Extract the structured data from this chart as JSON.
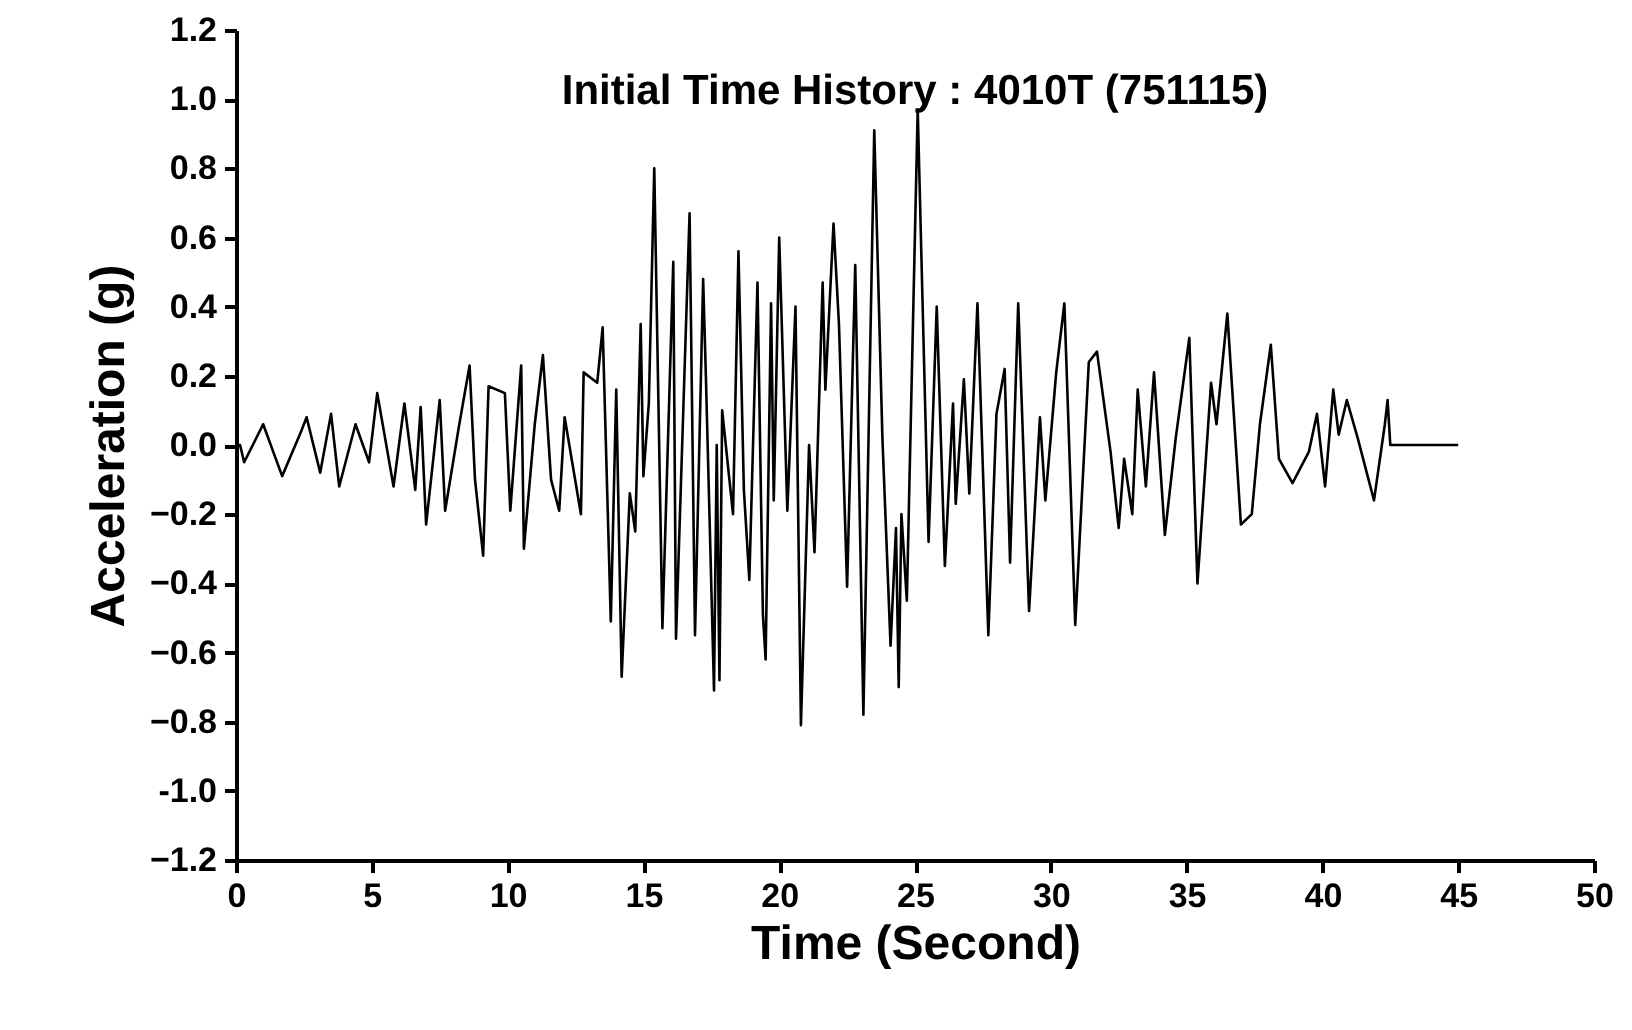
{
  "chart_data": {
    "type": "line",
    "title": "Initial Time History : 4010T (751115)",
    "xlabel": "Time (Second)",
    "ylabel": "Acceleration (g)",
    "xlim": [
      0,
      50
    ],
    "xticks": [
      0,
      5,
      10,
      15,
      20,
      25,
      30,
      35,
      40,
      45,
      50
    ],
    "ylim": [
      -1.2,
      1.2
    ],
    "yticks": [
      -1.2,
      {
        "value": -1,
        "label": "-1.0"
      },
      -0.8,
      -0.6,
      -0.4,
      -0.2,
      {
        "value": 0,
        "label": "0.0"
      },
      0.2,
      0.4,
      0.6,
      0.8,
      {
        "value": 1,
        "label": "1.0"
      },
      1.2
    ],
    "grid": false,
    "marker": "none",
    "line_style": "solid",
    "series": [
      {
        "color": "#000000",
        "x": [
          0,
          0.15,
          0.3,
          1.0,
          1.7,
          2.4,
          2.6,
          3.1,
          3.5,
          3.8,
          4.4,
          4.9,
          5.2,
          5.8,
          6.2,
          6.6,
          6.8,
          7.0,
          7.5,
          7.7,
          8.2,
          8.6,
          8.8,
          9.1,
          9.3,
          9.9,
          10.1,
          10.5,
          10.6,
          11.0,
          11.3,
          11.6,
          11.9,
          12.1,
          12.7,
          12.8,
          13.3,
          13.5,
          13.8,
          14.0,
          14.2,
          14.5,
          14.7,
          14.9,
          15.0,
          15.2,
          15.4,
          15.7,
          16.1,
          16.2,
          16.7,
          16.9,
          17.2,
          17.3,
          17.6,
          17.7,
          17.8,
          17.9,
          18.3,
          18.5,
          18.7,
          18.9,
          19.2,
          19.4,
          19.5,
          19.7,
          19.8,
          20.0,
          20.3,
          20.6,
          20.8,
          21.1,
          21.3,
          21.6,
          21.7,
          22.0,
          22.2,
          22.5,
          22.8,
          23.1,
          23.5,
          23.8,
          24.1,
          24.3,
          24.4,
          24.5,
          24.7,
          24.8,
          25.1,
          25.5,
          25.8,
          26.1,
          26.4,
          26.5,
          26.8,
          27.0,
          27.3,
          27.7,
          28.0,
          28.3,
          28.5,
          28.8,
          29.2,
          29.6,
          29.8,
          30.2,
          30.5,
          30.9,
          31.4,
          31.7,
          32.2,
          32.5,
          32.7,
          33.0,
          33.2,
          33.5,
          33.8,
          34.2,
          34.6,
          35.1,
          35.4,
          35.9,
          36.1,
          36.5,
          37.0,
          37.4,
          37.7,
          38.1,
          38.4,
          38.9,
          39.5,
          39.8,
          40.1,
          40.4,
          40.6,
          40.9,
          41.3,
          41.9,
          42.3,
          42.4,
          42.5,
          45.0
        ],
        "values": [
          0,
          0,
          -0.05,
          0.06,
          -0.09,
          0.04,
          0.08,
          -0.08,
          0.09,
          -0.12,
          0.06,
          -0.05,
          0.15,
          -0.12,
          0.12,
          -0.13,
          0.11,
          -0.23,
          0.13,
          -0.19,
          0.05,
          0.23,
          -0.1,
          -0.32,
          0.17,
          0.15,
          -0.19,
          0.23,
          -0.3,
          0.06,
          0.26,
          -0.1,
          -0.19,
          0.08,
          -0.2,
          0.21,
          0.18,
          0.34,
          -0.51,
          0.16,
          -0.67,
          -0.14,
          -0.25,
          0.35,
          -0.09,
          0.12,
          0.8,
          -0.53,
          0.53,
          -0.56,
          0.67,
          -0.55,
          0.48,
          0.2,
          -0.71,
          0,
          -0.68,
          0.1,
          -0.2,
          0.56,
          -0.13,
          -0.39,
          0.47,
          -0.49,
          -0.62,
          0.41,
          -0.16,
          0.6,
          -0.19,
          0.4,
          -0.81,
          0,
          -0.31,
          0.47,
          0.16,
          0.64,
          0.35,
          -0.41,
          0.52,
          -0.78,
          0.91,
          0.02,
          -0.58,
          -0.24,
          -0.7,
          -0.2,
          -0.45,
          -0.09,
          0.97,
          -0.28,
          0.4,
          -0.35,
          0.12,
          -0.17,
          0.19,
          -0.14,
          0.41,
          -0.55,
          0.09,
          0.22,
          -0.34,
          0.41,
          -0.48,
          0.08,
          -0.16,
          0.21,
          0.41,
          -0.52,
          0.24,
          0.27,
          -0.02,
          -0.24,
          -0.04,
          -0.2,
          0.16,
          -0.12,
          0.21,
          -0.26,
          0.02,
          0.31,
          -0.4,
          0.18,
          0.06,
          0.38,
          -0.23,
          -0.2,
          0.06,
          0.29,
          -0.04,
          -0.11,
          -0.02,
          0.09,
          -0.12,
          0.16,
          0.03,
          0.13,
          0.02,
          -0.16,
          0.06,
          0.13,
          0,
          0
        ]
      }
    ]
  }
}
